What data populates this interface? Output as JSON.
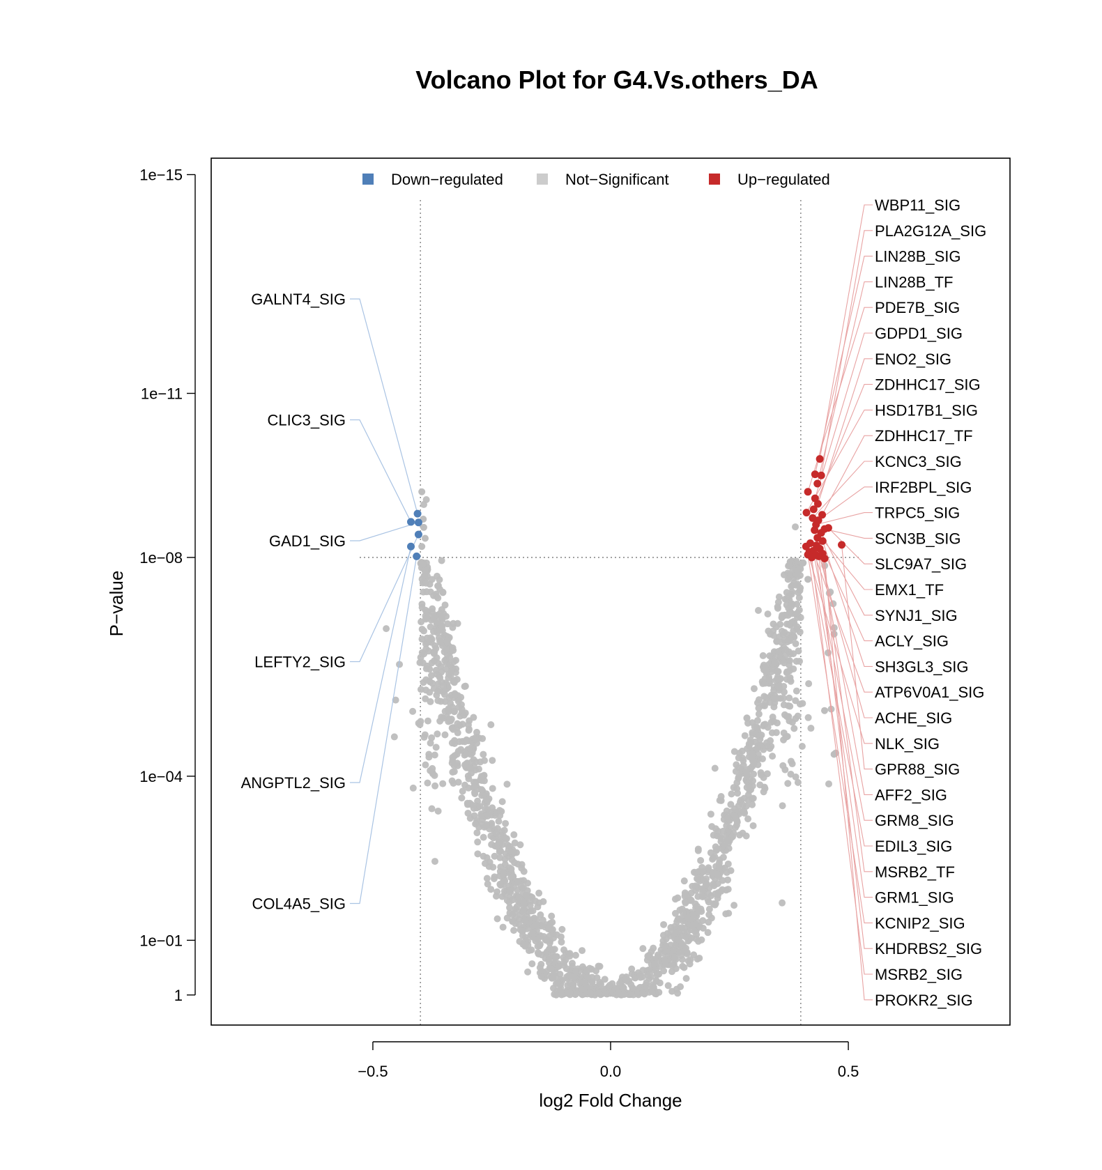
{
  "chart_data": {
    "type": "scatter",
    "title": "Volcano Plot for G4.Vs.others_DA",
    "xlabel": "log2 Fold Change",
    "ylabel": "P−value",
    "xlim": [
      -0.84,
      0.84
    ],
    "xticks": [
      -0.5,
      0.0,
      0.5
    ],
    "xtick_labels": [
      "−0.5",
      "0.0",
      "0.5"
    ],
    "y_scale": "-log10",
    "ylim_neglog10": [
      -0.55,
      15.3
    ],
    "yticks": [
      {
        "neglog10": 15,
        "label": "1e−15"
      },
      {
        "neglog10": 11,
        "label": "1e−11"
      },
      {
        "neglog10": 8,
        "label": "1e−08"
      },
      {
        "neglog10": 4,
        "label": "1e−04"
      },
      {
        "neglog10": 1,
        "label": "1e−01"
      },
      {
        "neglog10": 0,
        "label": "1"
      }
    ],
    "thresholds": {
      "log2fc": 0.4,
      "pvalue": "1e-08",
      "neglog10_pvalue": 8
    },
    "grid": false,
    "legend": {
      "position": "top",
      "entries": [
        {
          "name": "Down−regulated",
          "color": "#4f7fb8"
        },
        {
          "name": "Not−Significant",
          "color": "#cccccc"
        },
        {
          "name": "Up−regulated",
          "color": "#c62a2a"
        }
      ]
    },
    "colors": {
      "down": "#4f7fb8",
      "not_significant": "#bdbdbd",
      "up": "#c62a2a",
      "down_line": "#a9c3e3",
      "up_line": "#e8a2a2"
    },
    "background_points_note": "",
    "down_regulated": [
      {
        "label": "GALNT4_SIG",
        "x": -0.406,
        "y": 8.8
      },
      {
        "label": "CLIC3_SIG",
        "x": -0.42,
        "y": 8.65
      },
      {
        "label": "GAD1_SIG",
        "x": -0.404,
        "y": 8.64
      },
      {
        "label": "LEFTY2_SIG",
        "x": -0.404,
        "y": 8.42
      },
      {
        "label": "ANGPTL2_SIG",
        "x": -0.42,
        "y": 8.2
      },
      {
        "label": "COL4A5_SIG",
        "x": -0.408,
        "y": 8.02
      }
    ],
    "up_regulated": [
      {
        "label": "WBP11_SIG",
        "x": 0.44,
        "y": 9.8
      },
      {
        "label": "PLA2G12A_SIG",
        "x": 0.443,
        "y": 9.5
      },
      {
        "label": "LIN28B_SIG",
        "x": 0.43,
        "y": 9.52
      },
      {
        "label": "LIN28B_TF",
        "x": 0.435,
        "y": 9.35
      },
      {
        "label": "PDE7B_SIG",
        "x": 0.415,
        "y": 9.2
      },
      {
        "label": "GDPD1_SIG",
        "x": 0.43,
        "y": 9.08
      },
      {
        "label": "ENO2_SIG",
        "x": 0.436,
        "y": 8.98
      },
      {
        "label": "ZDHHC17_SIG",
        "x": 0.427,
        "y": 8.88
      },
      {
        "label": "HSD17B1_SIG",
        "x": 0.412,
        "y": 8.82
      },
      {
        "label": "ZDHHC17_TF",
        "x": 0.445,
        "y": 8.78
      },
      {
        "label": "KCNC3_SIG",
        "x": 0.425,
        "y": 8.72
      },
      {
        "label": "IRF2BPL_SIG",
        "x": 0.437,
        "y": 8.68
      },
      {
        "label": "TRPC5_SIG",
        "x": 0.432,
        "y": 8.6
      },
      {
        "label": "SCN3B_SIG",
        "x": 0.45,
        "y": 8.52
      },
      {
        "label": "SLC9A7_SIG",
        "x": 0.458,
        "y": 8.54
      },
      {
        "label": "EMX1_TF",
        "x": 0.429,
        "y": 8.5
      },
      {
        "label": "SYNJ1_SIG",
        "x": 0.443,
        "y": 8.45
      },
      {
        "label": "ACLY_SIG",
        "x": 0.435,
        "y": 8.36
      },
      {
        "label": "SH3GL3_SIG",
        "x": 0.446,
        "y": 8.3
      },
      {
        "label": "ATP6V0A1_SIG",
        "x": 0.42,
        "y": 8.26
      },
      {
        "label": "ACHE_SIG",
        "x": 0.433,
        "y": 8.22
      },
      {
        "label": "NLK_SIG",
        "x": 0.411,
        "y": 8.2
      },
      {
        "label": "GPR88_SIG",
        "x": 0.486,
        "y": 8.23
      },
      {
        "label": "AFF2_SIG",
        "x": 0.44,
        "y": 8.16
      },
      {
        "label": "GRM8_SIG",
        "x": 0.426,
        "y": 8.12
      },
      {
        "label": "EDIL3_SIG",
        "x": 0.418,
        "y": 8.1
      },
      {
        "label": "MSRB2_TF",
        "x": 0.446,
        "y": 8.07
      },
      {
        "label": "GRM1_SIG",
        "x": 0.432,
        "y": 8.04
      },
      {
        "label": "KCNIP2_SIG",
        "x": 0.415,
        "y": 8.05
      },
      {
        "label": "KHDRBS2_SIG",
        "x": 0.438,
        "y": 8.02
      },
      {
        "label": "MSRB2_SIG",
        "x": 0.423,
        "y": 8.0
      },
      {
        "label": "PROKR2_SIG",
        "x": 0.45,
        "y": 7.98
      }
    ]
  }
}
